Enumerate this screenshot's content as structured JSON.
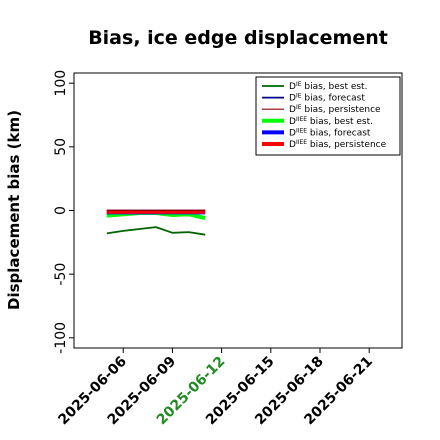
{
  "chart_data": {
    "type": "line",
    "title": "Bias, ice edge displacement",
    "ylabel": "Displacement bias (km)",
    "xlabel": "",
    "ylim": [
      -108,
      108
    ],
    "xlim": [
      "2025-06-03",
      "2025-06-23"
    ],
    "yticks": [
      -100,
      -50,
      0,
      50,
      100
    ],
    "xticks": [
      {
        "label": "2025-06-06",
        "color": "#000000"
      },
      {
        "label": "2025-06-09",
        "color": "#000000"
      },
      {
        "label": "2025-06-12",
        "color": "#228b22"
      },
      {
        "label": "2025-06-15",
        "color": "#000000"
      },
      {
        "label": "2025-06-18",
        "color": "#000000"
      },
      {
        "label": "2025-06-21",
        "color": "#000000"
      }
    ],
    "x": [
      "2025-06-05",
      "2025-06-06",
      "2025-06-07",
      "2025-06-08",
      "2025-06-09",
      "2025-06-10",
      "2025-06-11"
    ],
    "series": [
      {
        "name": "D^IE bias, best est.",
        "sup": "IE",
        "legend_text": " bias, best est.",
        "color": "#006400",
        "width": 1.8,
        "values": [
          -18,
          -16,
          -14.5,
          -13,
          -17.5,
          -17,
          -19
        ]
      },
      {
        "name": "D^IE bias, forecast",
        "sup": "IE",
        "legend_text": " bias, forecast",
        "color": "#00008b",
        "width": 1.8,
        "values": [
          0,
          0,
          0,
          0,
          0,
          0,
          0
        ]
      },
      {
        "name": "D^IE bias, persistence",
        "sup": "IE",
        "legend_text": " bias, persistence",
        "color": "#8b0000",
        "width": 1.2,
        "values": [
          0,
          0,
          0,
          0,
          0,
          0,
          0
        ]
      },
      {
        "name": "D^IIEE bias, best est.",
        "sup": "IIEE",
        "legend_text": " bias, best est.",
        "color": "#00ff00",
        "width": 4,
        "values": [
          -4,
          -3,
          -2,
          -2,
          -3.5,
          -3,
          -6
        ]
      },
      {
        "name": "D^IIEE bias, forecast",
        "sup": "IIEE",
        "legend_text": " bias, forecast",
        "color": "#0000ff",
        "width": 4,
        "values": [
          -1.5,
          -1.5,
          -1.5,
          -1.5,
          -1.5,
          -1.5,
          -1.5
        ]
      },
      {
        "name": "D^IIEE bias, persistence",
        "sup": "IIEE",
        "legend_text": " bias, persistence",
        "color": "#ff0000",
        "width": 4,
        "values": [
          -1,
          -1,
          -1,
          -1,
          -1,
          -1,
          -1
        ]
      }
    ],
    "legend_placement": "top-right",
    "legend_prefix": "D",
    "grid": false
  }
}
